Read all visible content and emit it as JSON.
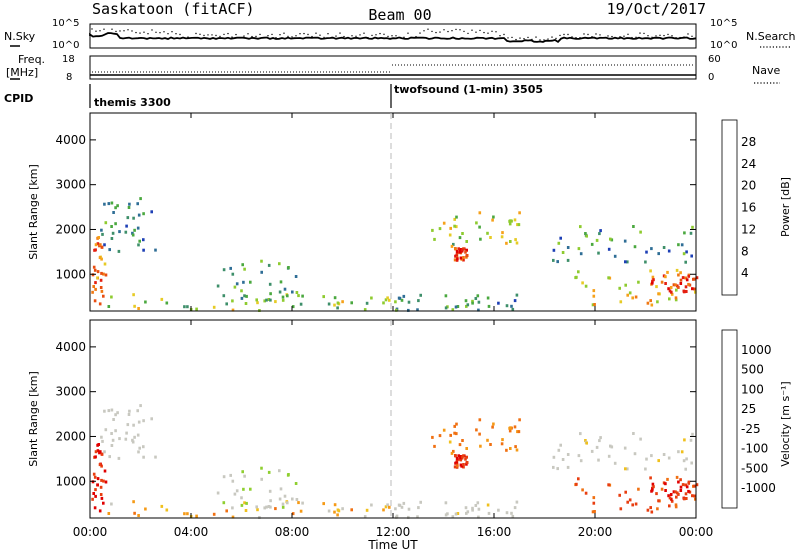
{
  "header": {
    "station": "Saskatoon (fitACF)",
    "beam": "Beam 00",
    "date": "19/Oct/2017"
  },
  "summary_panels": {
    "nsky_label": "N.Sky",
    "nsky_ticks": [
      "10^5",
      "10^0"
    ],
    "nsearch_label": "N.Search",
    "nsearch_ticks": [
      "10^5",
      "10^0"
    ],
    "freq_label_1": "Freq.",
    "freq_label_2": "[MHz]",
    "freq_ticks": [
      "18",
      "8"
    ],
    "nave_label": "Nave",
    "nave_ticks": [
      "60",
      "0"
    ],
    "cpid_label": "CPID",
    "cpid_modes": [
      {
        "name": "themis 3300",
        "start_hour": 0
      },
      {
        "name": "twofsound (1-min) 3505",
        "start_hour": 12
      }
    ]
  },
  "power_panel": {
    "ylabel": "Slant Range [km]",
    "colorbar_label": "Power [dB]",
    "colorbar_ticks": [
      "28",
      "24",
      "20",
      "16",
      "12",
      "8",
      "4"
    ],
    "colors": [
      "#0000ff",
      "#1d3fb5",
      "#2f6e96",
      "#3e8f6a",
      "#4aa83f",
      "#8ecb2f",
      "#e6cb25",
      "#f6a11a",
      "#f07812",
      "#e84d10",
      "#e41e10",
      "#e00000"
    ]
  },
  "velocity_panel": {
    "ylabel": "Slant Range [km]",
    "colorbar_label": "Velocity [m s⁻¹]",
    "colorbar_ticks": [
      "1000",
      "500",
      "100",
      "25",
      "-25",
      "-100",
      "-500",
      "-1000"
    ],
    "colors": [
      "#1a3fb0",
      "#2f6fa0",
      "#3a8f55",
      "#4db038",
      "#8fcf30",
      "#c8c8c0",
      "#c8c8c0",
      "#f0c01c",
      "#f59a16",
      "#f07012",
      "#e83e10",
      "#e00000"
    ]
  },
  "x_axis": {
    "label": "Time UT",
    "tick_labels": [
      "00:00",
      "04:00",
      "08:00",
      "12:00",
      "16:00",
      "20:00",
      "00:00"
    ]
  },
  "chart_data": {
    "type": "heatmap",
    "x": {
      "label": "Time UT",
      "range_hours": [
        0,
        24
      ],
      "ticks": [
        "00:00",
        "04:00",
        "08:00",
        "12:00",
        "16:00",
        "20:00",
        "00:00"
      ]
    },
    "y": {
      "label": "Slant Range [km]",
      "range_km": [
        180,
        4600
      ],
      "ticks": [
        1000,
        2000,
        3000,
        4000
      ]
    },
    "power_scale": {
      "label": "Power [dB]",
      "range": [
        0,
        30
      ],
      "ticks": [
        4,
        8,
        12,
        16,
        20,
        24,
        28
      ]
    },
    "velocity_scale": {
      "label": "Velocity [m s⁻¹]",
      "ticks": [
        1000,
        500,
        100,
        25,
        -25,
        -100,
        -500,
        -1000
      ]
    },
    "summary": {
      "nsky": {
        "range": [
          "10^0",
          "10^5"
        ]
      },
      "nsearch": {
        "range": [
          "10^0",
          "10^5"
        ]
      },
      "freq_mhz": {
        "range": [
          8,
          18
        ]
      },
      "nave": {
        "range": [
          0,
          60
        ]
      }
    },
    "echo_regions": [
      {
        "t0": 0.0,
        "t1": 0.6,
        "r0": 180,
        "r1": 1900,
        "power": 22,
        "velocity": -600
      },
      {
        "t0": 0.3,
        "t1": 2.6,
        "r0": 1500,
        "r1": 2700,
        "power": 8,
        "velocity": 0
      },
      {
        "t0": 0.5,
        "t1": 12.0,
        "r0": 180,
        "r1": 550,
        "power": 14,
        "velocity": -60
      },
      {
        "t0": 5.0,
        "t1": 8.5,
        "r0": 400,
        "r1": 1300,
        "power": 10,
        "velocity": 30
      },
      {
        "t0": 13.5,
        "t1": 17.0,
        "r0": 1600,
        "r1": 2400,
        "power": 14,
        "velocity": -120
      },
      {
        "t0": 14.4,
        "t1": 14.9,
        "r0": 1300,
        "r1": 1600,
        "power": 26,
        "velocity": -400
      },
      {
        "t0": 12.0,
        "t1": 17.0,
        "r0": 180,
        "r1": 550,
        "power": 9,
        "velocity": 0
      },
      {
        "t0": 17.8,
        "t1": 24.0,
        "r0": 1200,
        "r1": 2100,
        "power": 9,
        "velocity": 0
      },
      {
        "t0": 19.0,
        "t1": 24.0,
        "r0": 300,
        "r1": 1100,
        "power": 18,
        "velocity": -250
      },
      {
        "t0": 22.0,
        "t1": 24.0,
        "r0": 600,
        "r1": 1000,
        "power": 24,
        "velocity": -500
      }
    ]
  }
}
